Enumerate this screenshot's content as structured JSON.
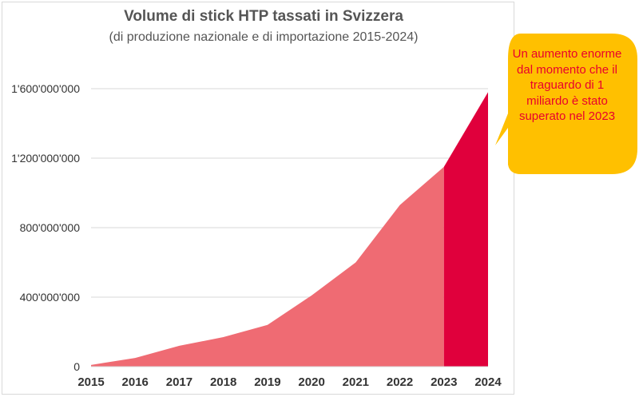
{
  "chart_data": {
    "type": "area",
    "title": "Volume di stick HTP tassati in Svizzera",
    "subtitle": "(di produzione nazionale e di importazione 2015-2024)",
    "x": [
      "2015",
      "2016",
      "2017",
      "2018",
      "2019",
      "2020",
      "2021",
      "2022",
      "2023",
      "2024"
    ],
    "series": [
      {
        "name": "Stick HTP tassati",
        "values": [
          10000000,
          50000000,
          120000000,
          170000000,
          240000000,
          410000000,
          600000000,
          930000000,
          1150000000,
          1580000000
        ]
      }
    ],
    "ytick_labels": [
      "0",
      "400'000'000",
      "800'000'000",
      "1'200'000'000",
      "1'600'000'000"
    ],
    "yticks": [
      0,
      400000000,
      800000000,
      1200000000,
      1600000000
    ],
    "ylim": [
      0,
      1600000000
    ],
    "grid": true,
    "highlight_from": "2023",
    "colors": {
      "area": "#ef6b73",
      "highlight": "#e0003c",
      "grid": "#d9d9d9",
      "tick_text": "#333333",
      "callout_bg": "#ffc000",
      "callout_text": "#e8002d"
    },
    "annotation": "Un aumento enorme dal momento che il traguardo di 1 miliardo è stato superato nel 2023"
  }
}
